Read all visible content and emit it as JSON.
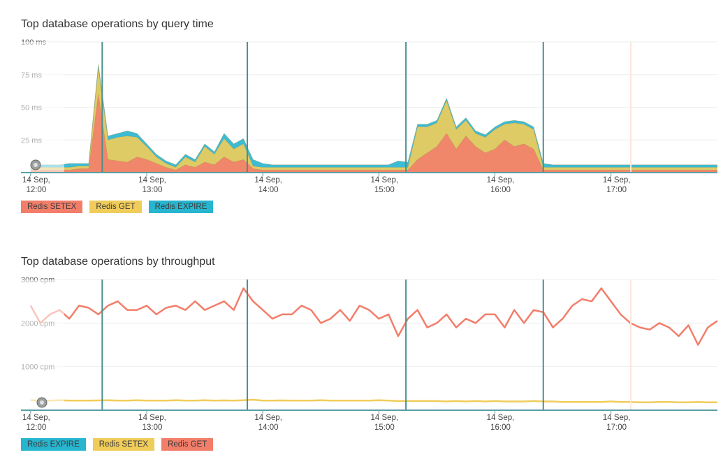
{
  "colors": {
    "setex": "#f27e6a",
    "get": "#f0cc5a",
    "expire": "#27b5cf",
    "marker": "#4a9090",
    "axis": "#5aa0a5",
    "grid": "#eeeeee"
  },
  "charts": [
    {
      "title": "Top database operations by query time",
      "y_ticks": [
        "25 ms",
        "50 ms",
        "75 ms",
        "100 ms"
      ],
      "x_ticks": [
        {
          "line1": "14 Sep,",
          "line2": "12:00"
        },
        {
          "line1": "14 Sep,",
          "line2": "13:00"
        },
        {
          "line1": "14 Sep,",
          "line2": "14:00"
        },
        {
          "line1": "14 Sep,",
          "line2": "15:00"
        },
        {
          "line1": "14 Sep,",
          "line2": "16:00"
        },
        {
          "line1": "14 Sep,",
          "line2": "17:00"
        }
      ],
      "legend": [
        {
          "label": "Redis SETEX",
          "color": "#f27e6a"
        },
        {
          "label": "Redis GET",
          "color": "#f0cc5a"
        },
        {
          "label": "Redis EXPIRE",
          "color": "#27b5cf"
        }
      ]
    },
    {
      "title": "Top database operations by throughput",
      "y_ticks": [
        "1000 cpm",
        "2000 cpm",
        "3000 cpm"
      ],
      "x_ticks": [
        {
          "line1": "14 Sep,",
          "line2": "12:00"
        },
        {
          "line1": "14 Sep,",
          "line2": "13:00"
        },
        {
          "line1": "14 Sep,",
          "line2": "14:00"
        },
        {
          "line1": "14 Sep,",
          "line2": "15:00"
        },
        {
          "line1": "14 Sep,",
          "line2": "16:00"
        },
        {
          "line1": "14 Sep,",
          "line2": "17:00"
        }
      ],
      "legend": [
        {
          "label": "Redis EXPIRE",
          "color": "#27b5cf"
        },
        {
          "label": "Redis SETEX",
          "color": "#f0cc5a"
        },
        {
          "label": "Redis GET",
          "color": "#f27e6a"
        }
      ]
    }
  ],
  "chart_data": [
    {
      "type": "area",
      "stacked": true,
      "title": "Top database operations by query time",
      "ylabel": "",
      "xlabel": "",
      "ylim": [
        0,
        100
      ],
      "xlim": [
        "12:00",
        "17:55"
      ],
      "grid": true,
      "legend_position": "bottom-left",
      "markers": [
        "12:37",
        "13:52",
        "15:14",
        "16:25"
      ],
      "x": [
        "12:00",
        "12:05",
        "12:10",
        "12:15",
        "12:20",
        "12:25",
        "12:30",
        "12:35",
        "12:40",
        "12:45",
        "12:50",
        "12:55",
        "13:00",
        "13:05",
        "13:10",
        "13:15",
        "13:20",
        "13:25",
        "13:30",
        "13:35",
        "13:40",
        "13:45",
        "13:50",
        "13:55",
        "14:00",
        "14:05",
        "14:10",
        "14:15",
        "14:20",
        "14:25",
        "14:30",
        "14:35",
        "14:40",
        "14:45",
        "14:50",
        "14:55",
        "15:00",
        "15:05",
        "15:10",
        "15:15",
        "15:20",
        "15:25",
        "15:30",
        "15:35",
        "15:40",
        "15:45",
        "15:50",
        "15:55",
        "16:00",
        "16:05",
        "16:10",
        "16:15",
        "16:20",
        "16:25",
        "16:30",
        "16:35",
        "16:40",
        "16:45",
        "16:50",
        "16:55",
        "17:00",
        "17:05",
        "17:10",
        "17:15",
        "17:20",
        "17:25",
        "17:30",
        "17:35",
        "17:40",
        "17:45",
        "17:50",
        "17:55"
      ],
      "series": [
        {
          "name": "Redis SETEX",
          "values": [
            2,
            2,
            2,
            2,
            2,
            3,
            3,
            60,
            10,
            9,
            8,
            12,
            10,
            7,
            4,
            2,
            6,
            4,
            8,
            6,
            12,
            8,
            10,
            3,
            2,
            2,
            2,
            2,
            2,
            2,
            2,
            2,
            2,
            2,
            2,
            2,
            2,
            2,
            2,
            2,
            10,
            15,
            20,
            30,
            18,
            28,
            20,
            15,
            18,
            25,
            20,
            22,
            18,
            2,
            2,
            2,
            2,
            2,
            2,
            2,
            2,
            2,
            2,
            2,
            2,
            2,
            2,
            2,
            2,
            2,
            2,
            2
          ]
        },
        {
          "name": "Redis GET",
          "values": [
            2,
            2,
            2,
            2,
            2,
            2,
            2,
            20,
            15,
            18,
            20,
            15,
            10,
            5,
            3,
            2,
            6,
            4,
            12,
            8,
            14,
            10,
            12,
            2,
            2,
            2,
            2,
            2,
            2,
            2,
            2,
            2,
            2,
            2,
            2,
            2,
            2,
            2,
            2,
            2,
            25,
            20,
            18,
            25,
            15,
            12,
            10,
            12,
            15,
            12,
            18,
            15,
            15,
            2,
            2,
            2,
            2,
            2,
            2,
            2,
            2,
            2,
            2,
            2,
            2,
            2,
            2,
            2,
            2,
            2,
            2,
            2
          ]
        },
        {
          "name": "Redis EXPIRE",
          "values": [
            3,
            2,
            2,
            2,
            3,
            2,
            2,
            3,
            3,
            3,
            4,
            3,
            2,
            2,
            2,
            2,
            2,
            2,
            2,
            2,
            4,
            4,
            4,
            5,
            3,
            2,
            2,
            2,
            2,
            2,
            2,
            2,
            2,
            2,
            2,
            2,
            2,
            2,
            5,
            4,
            2,
            2,
            2,
            2,
            2,
            2,
            2,
            2,
            2,
            2,
            2,
            2,
            2,
            3,
            2,
            2,
            2,
            2,
            2,
            2,
            2,
            2,
            2,
            2,
            2,
            2,
            2,
            2,
            2,
            2,
            2,
            2
          ]
        }
      ]
    },
    {
      "type": "line",
      "title": "Top database operations by throughput",
      "ylabel": "",
      "xlabel": "",
      "ylim": [
        0,
        3000
      ],
      "xlim": [
        "12:00",
        "17:55"
      ],
      "grid": true,
      "legend_position": "bottom-left",
      "markers": [
        "12:37",
        "13:52",
        "15:14",
        "16:25"
      ],
      "x": [
        "12:00",
        "12:05",
        "12:10",
        "12:15",
        "12:20",
        "12:25",
        "12:30",
        "12:35",
        "12:40",
        "12:45",
        "12:50",
        "12:55",
        "13:00",
        "13:05",
        "13:10",
        "13:15",
        "13:20",
        "13:25",
        "13:30",
        "13:35",
        "13:40",
        "13:45",
        "13:50",
        "13:55",
        "14:00",
        "14:05",
        "14:10",
        "14:15",
        "14:20",
        "14:25",
        "14:30",
        "14:35",
        "14:40",
        "14:45",
        "14:50",
        "14:55",
        "15:00",
        "15:05",
        "15:10",
        "15:15",
        "15:20",
        "15:25",
        "15:30",
        "15:35",
        "15:40",
        "15:45",
        "15:50",
        "15:55",
        "16:00",
        "16:05",
        "16:10",
        "16:15",
        "16:20",
        "16:25",
        "16:30",
        "16:35",
        "16:40",
        "16:45",
        "16:50",
        "16:55",
        "17:00",
        "17:05",
        "17:10",
        "17:15",
        "17:20",
        "17:25",
        "17:30",
        "17:35",
        "17:40",
        "17:45",
        "17:50",
        "17:55"
      ],
      "series": [
        {
          "name": "Redis EXPIRE",
          "values": [
            50,
            50,
            50,
            50,
            50,
            50,
            50,
            50,
            50,
            50,
            50,
            50,
            50,
            50,
            50,
            50,
            50,
            50,
            50,
            50,
            50,
            50,
            50,
            50,
            50,
            50,
            50,
            50,
            50,
            50,
            50,
            50,
            50,
            50,
            50,
            50,
            50,
            50,
            50,
            50,
            50,
            50,
            50,
            50,
            50,
            50,
            50,
            50,
            50,
            50,
            50,
            50,
            50,
            50,
            50,
            50,
            50,
            50,
            50,
            50,
            50,
            50,
            50,
            50,
            50,
            50,
            50,
            50,
            50,
            50,
            50,
            50
          ]
        },
        {
          "name": "Redis SETEX",
          "values": [
            230,
            220,
            220,
            230,
            220,
            220,
            220,
            225,
            230,
            220,
            220,
            230,
            220,
            220,
            220,
            230,
            220,
            220,
            230,
            220,
            225,
            220,
            230,
            240,
            220,
            220,
            225,
            220,
            220,
            220,
            230,
            220,
            220,
            220,
            220,
            220,
            230,
            220,
            210,
            210,
            210,
            210,
            210,
            200,
            210,
            200,
            210,
            200,
            210,
            200,
            200,
            200,
            210,
            200,
            200,
            190,
            190,
            190,
            190,
            190,
            200,
            190,
            190,
            180,
            180,
            190,
            190,
            180,
            180,
            190,
            180,
            180
          ]
        },
        {
          "name": "Redis GET",
          "values": [
            2400,
            2000,
            2200,
            2300,
            2100,
            2400,
            2350,
            2200,
            2400,
            2500,
            2300,
            2300,
            2400,
            2200,
            2350,
            2400,
            2300,
            2500,
            2300,
            2400,
            2500,
            2300,
            2800,
            2500,
            2300,
            2100,
            2200,
            2200,
            2400,
            2300,
            2000,
            2100,
            2300,
            2050,
            2400,
            2300,
            2100,
            2200,
            1700,
            2100,
            2300,
            1900,
            2000,
            2200,
            1900,
            2100,
            2000,
            2200,
            2200,
            1900,
            2300,
            2000,
            2300,
            2250,
            1900,
            2100,
            2400,
            2550,
            2500,
            2800,
            2500,
            2200,
            2000,
            1900,
            1850,
            2000,
            1900,
            1700,
            1950,
            1500,
            1900,
            2050
          ]
        }
      ]
    }
  ]
}
